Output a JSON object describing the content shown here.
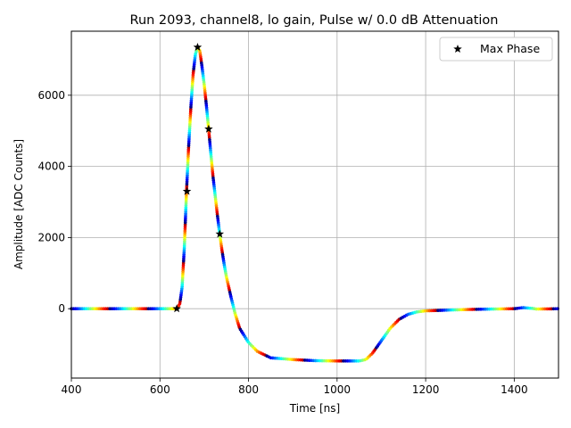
{
  "chart_data": {
    "type": "scatter",
    "title": "Run 2093, channel8, lo gain, Pulse w/ 0.0 dB Attenuation",
    "xlabel": "Time [ns]",
    "ylabel": "Amplitude [ADC Counts]",
    "xlim": [
      400,
      1500
    ],
    "ylim": [
      -1950,
      7800
    ],
    "xticks": [
      400,
      600,
      800,
      1000,
      1200,
      1400
    ],
    "yticks": [
      0,
      2000,
      4000,
      6000
    ],
    "xtick_labels": [
      "400",
      "600",
      "800",
      "1000",
      "1200",
      "1400"
    ],
    "ytick_labels": [
      "0",
      "2000",
      "4000",
      "6000"
    ],
    "grid": true,
    "legend": {
      "position": "top-right",
      "entries": [
        "Max Phase"
      ]
    },
    "colormap": "jet",
    "waveform_points": [
      [
        400,
        0
      ],
      [
        620,
        0
      ],
      [
        635,
        0
      ],
      [
        640,
        20
      ],
      [
        645,
        150
      ],
      [
        650,
        600
      ],
      [
        655,
        1700
      ],
      [
        660,
        3300
      ],
      [
        665,
        4600
      ],
      [
        670,
        5700
      ],
      [
        675,
        6600
      ],
      [
        680,
        7150
      ],
      [
        685,
        7350
      ],
      [
        690,
        7250
      ],
      [
        695,
        6800
      ],
      [
        700,
        6300
      ],
      [
        705,
        5700
      ],
      [
        710,
        5050
      ],
      [
        715,
        4350
      ],
      [
        720,
        3700
      ],
      [
        725,
        3150
      ],
      [
        730,
        2600
      ],
      [
        735,
        2100
      ],
      [
        740,
        1650
      ],
      [
        745,
        1250
      ],
      [
        750,
        900
      ],
      [
        760,
        350
      ],
      [
        770,
        -150
      ],
      [
        780,
        -550
      ],
      [
        800,
        -950
      ],
      [
        820,
        -1200
      ],
      [
        850,
        -1380
      ],
      [
        900,
        -1430
      ],
      [
        950,
        -1460
      ],
      [
        1000,
        -1470
      ],
      [
        1050,
        -1470
      ],
      [
        1065,
        -1430
      ],
      [
        1080,
        -1250
      ],
      [
        1100,
        -900
      ],
      [
        1120,
        -550
      ],
      [
        1140,
        -300
      ],
      [
        1160,
        -160
      ],
      [
        1180,
        -90
      ],
      [
        1200,
        -60
      ],
      [
        1250,
        -40
      ],
      [
        1300,
        -20
      ],
      [
        1400,
        0
      ],
      [
        1420,
        30
      ],
      [
        1440,
        10
      ],
      [
        1450,
        -10
      ],
      [
        1500,
        0
      ]
    ],
    "series": [
      {
        "name": "Max Phase",
        "marker": "star",
        "color": "#000000",
        "x": [
          638,
          661,
          685,
          710,
          735
        ],
        "y": [
          0,
          3300,
          7350,
          5050,
          2100
        ]
      }
    ]
  }
}
